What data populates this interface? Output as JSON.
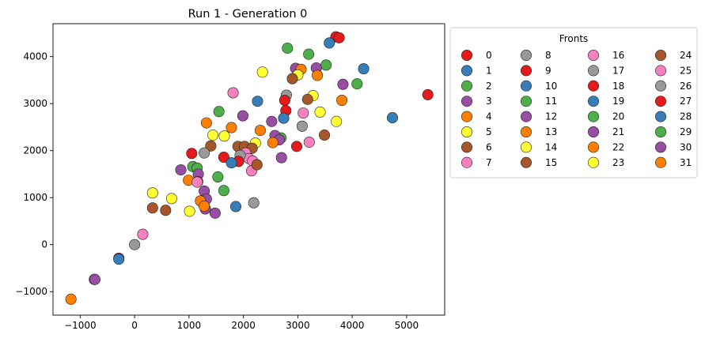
{
  "chart_data": {
    "type": "scatter",
    "title": "Run 1 - Generation 0",
    "xlabel": "",
    "ylabel": "",
    "xlim": [
      -1500,
      5700
    ],
    "ylim": [
      -1500,
      4700
    ],
    "x_ticks": [
      -1000,
      0,
      1000,
      2000,
      3000,
      4000,
      5000
    ],
    "y_ticks": [
      -1000,
      0,
      1000,
      2000,
      3000,
      4000
    ],
    "grid": false,
    "legend": {
      "title": "Fronts",
      "placement": "outside-right-top",
      "columns": 4
    },
    "palette": [
      "#e41a1c",
      "#377eb8",
      "#4daf4a",
      "#984ea3",
      "#ff7f00",
      "#ffff33",
      "#a65628",
      "#f781bf",
      "#999999"
    ],
    "series": [
      {
        "name": "0",
        "points": [
          [
            3700,
            4420
          ],
          [
            3760,
            4400
          ],
          [
            5390,
            3190
          ]
        ]
      },
      {
        "name": "1",
        "points": [
          [
            3580,
            4290
          ],
          [
            4210,
            3740
          ],
          [
            4740,
            2700
          ]
        ]
      },
      {
        "name": "2",
        "points": [
          [
            2810,
            4180
          ],
          [
            3200,
            4050
          ],
          [
            3520,
            3820
          ],
          [
            4090,
            3420
          ]
        ]
      },
      {
        "name": "3",
        "points": [
          [
            2960,
            3750
          ],
          [
            3340,
            3760
          ],
          [
            3830,
            3410
          ]
        ]
      },
      {
        "name": "4",
        "points": [
          [
            3060,
            3730
          ],
          [
            3360,
            3600
          ],
          [
            3810,
            3070
          ]
        ]
      },
      {
        "name": "5",
        "points": [
          [
            2350,
            3670
          ],
          [
            3000,
            3610
          ],
          [
            3280,
            3170
          ],
          [
            3410,
            2820
          ],
          [
            3710,
            2620
          ]
        ]
      },
      {
        "name": "6",
        "points": [
          [
            2900,
            3530
          ],
          [
            3180,
            3090
          ],
          [
            3490,
            2330
          ]
        ]
      },
      {
        "name": "7",
        "points": [
          [
            1810,
            3230
          ],
          [
            3100,
            2800
          ],
          [
            3210,
            2180
          ]
        ]
      },
      {
        "name": "8",
        "points": [
          [
            2790,
            3180
          ],
          [
            3080,
            2520
          ]
        ]
      },
      {
        "name": "9",
        "points": [
          [
            2760,
            3070
          ],
          [
            2980,
            2090
          ],
          [
            2780,
            2850
          ]
        ]
      },
      {
        "name": "10",
        "points": [
          [
            2260,
            3050
          ],
          [
            2740,
            2690
          ]
        ]
      },
      {
        "name": "11",
        "points": [
          [
            1550,
            2830
          ],
          [
            2690,
            2270
          ]
        ]
      },
      {
        "name": "12",
        "points": [
          [
            1990,
            2740
          ],
          [
            2520,
            2620
          ],
          [
            2580,
            2320
          ],
          [
            2660,
            2230
          ]
        ]
      },
      {
        "name": "13",
        "points": [
          [
            1320,
            2590
          ],
          [
            1780,
            2490
          ],
          [
            2310,
            2430
          ]
        ]
      },
      {
        "name": "14",
        "points": [
          [
            1440,
            2330
          ],
          [
            1650,
            2310
          ],
          [
            2220,
            2160
          ]
        ]
      },
      {
        "name": "15",
        "points": [
          [
            1400,
            2100
          ],
          [
            1900,
            2090
          ],
          [
            2020,
            2090
          ],
          [
            2160,
            2050
          ]
        ]
      },
      {
        "name": "16",
        "points": [
          [
            2040,
            1950
          ],
          [
            2100,
            1830
          ],
          [
            2170,
            1780
          ],
          [
            2150,
            1570
          ]
        ]
      },
      {
        "name": "17",
        "points": [
          [
            1280,
            1950
          ],
          [
            1940,
            1900
          ],
          [
            2190,
            890
          ]
        ]
      },
      {
        "name": "18",
        "points": [
          [
            1050,
            1940
          ],
          [
            1640,
            1860
          ],
          [
            1910,
            1770
          ]
        ]
      },
      {
        "name": "19",
        "points": [
          [
            1780,
            1740
          ],
          [
            1860,
            810
          ]
        ]
      },
      {
        "name": "20",
        "points": [
          [
            1070,
            1660
          ],
          [
            1150,
            1630
          ],
          [
            1530,
            1440
          ],
          [
            1640,
            1150
          ]
        ]
      },
      {
        "name": "21",
        "points": [
          [
            850,
            1590
          ],
          [
            1170,
            1500
          ],
          [
            1160,
            1340
          ],
          [
            1280,
            1140
          ],
          [
            1320,
            970
          ],
          [
            1300,
            760
          ],
          [
            1480,
            670
          ]
        ]
      },
      {
        "name": "22",
        "points": [
          [
            990,
            1370
          ],
          [
            1210,
            930
          ],
          [
            1280,
            820
          ]
        ]
      },
      {
        "name": "23",
        "points": [
          [
            330,
            1100
          ],
          [
            680,
            980
          ],
          [
            1010,
            710
          ]
        ]
      },
      {
        "name": "24",
        "points": [
          [
            330,
            780
          ],
          [
            570,
            730
          ],
          [
            2250,
            1700
          ]
        ]
      },
      {
        "name": "25",
        "points": [
          [
            150,
            220
          ],
          [
            1150,
            1330
          ]
        ]
      },
      {
        "name": "26",
        "points": [
          [
            0,
            0
          ]
        ]
      },
      {
        "name": "27",
        "points": [
          [
            -290,
            -290
          ]
        ]
      },
      {
        "name": "28",
        "points": [
          [
            -290,
            -310
          ]
        ]
      },
      {
        "name": "29",
        "points": [
          [
            -740,
            -740
          ]
        ]
      },
      {
        "name": "30",
        "points": [
          [
            -730,
            -740
          ],
          [
            2700,
            1850
          ]
        ]
      },
      {
        "name": "31",
        "points": [
          [
            -1170,
            -1160
          ],
          [
            2540,
            2170
          ]
        ]
      }
    ]
  }
}
